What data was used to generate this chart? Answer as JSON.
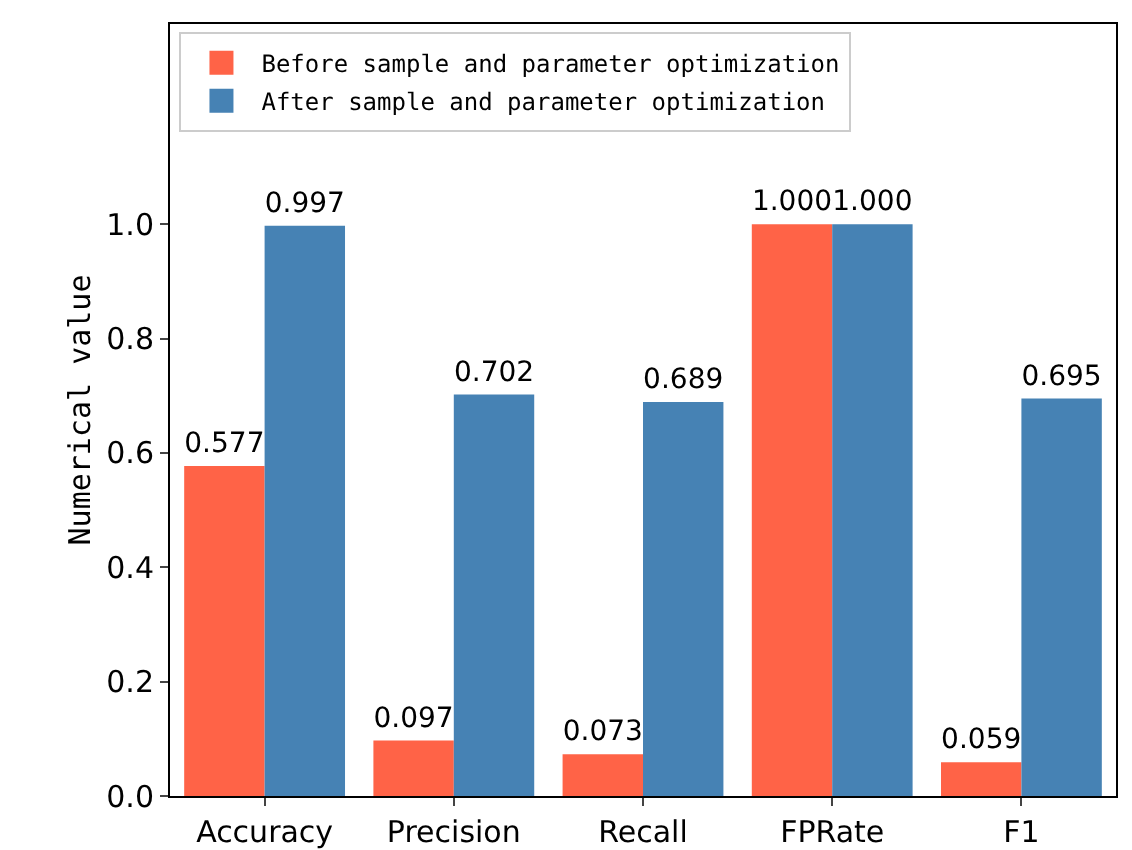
{
  "chart_data": {
    "type": "bar",
    "ylabel": "Numerical value",
    "categories": [
      "Accuracy",
      "Precision",
      "Recall",
      "FPRate",
      "F1"
    ],
    "series": [
      {
        "name": "Before sample and parameter optimization",
        "color": "#ff6347",
        "values": [
          0.577,
          0.097,
          0.073,
          1.0,
          0.059
        ],
        "value_labels": [
          "0.577",
          "0.097",
          "0.073",
          "1.000",
          "0.059"
        ]
      },
      {
        "name": "After sample and parameter optimization",
        "color": "#4682b4",
        "values": [
          0.997,
          0.702,
          0.689,
          1.0,
          0.695
        ],
        "value_labels": [
          "0.997",
          "0.702",
          "0.689",
          "1.000",
          "0.695"
        ]
      }
    ],
    "ylim": [
      0,
      1.35
    ],
    "yticks": [
      {
        "value": 0,
        "label": "0.0"
      },
      {
        "value": 0.2,
        "label": "0.2"
      },
      {
        "value": 0.4,
        "label": "0.4"
      },
      {
        "value": 0.6,
        "label": "0.6"
      },
      {
        "value": 0.8,
        "label": "0.8"
      },
      {
        "value": 1,
        "label": "1.0"
      }
    ],
    "grid": false,
    "legend": "top left"
  }
}
